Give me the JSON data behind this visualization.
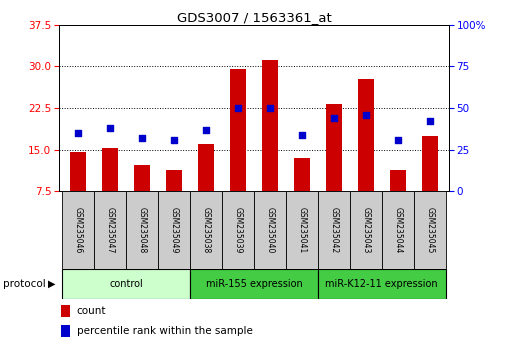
{
  "title": "GDS3007 / 1563361_at",
  "samples": [
    "GSM235046",
    "GSM235047",
    "GSM235048",
    "GSM235049",
    "GSM235038",
    "GSM235039",
    "GSM235040",
    "GSM235041",
    "GSM235042",
    "GSM235043",
    "GSM235044",
    "GSM235045"
  ],
  "count_values": [
    14.5,
    15.2,
    12.3,
    11.3,
    16.0,
    29.5,
    31.2,
    13.5,
    23.2,
    27.8,
    11.3,
    17.5
  ],
  "percentile_values": [
    35,
    38,
    32,
    31,
    37,
    50,
    50,
    34,
    44,
    46,
    31,
    42
  ],
  "ylim_left": [
    7.5,
    37.5
  ],
  "ylim_right": [
    0,
    100
  ],
  "yticks_left": [
    7.5,
    15.0,
    22.5,
    30.0,
    37.5
  ],
  "yticks_right": [
    0,
    25,
    50,
    75,
    100
  ],
  "bar_color": "#cc0000",
  "dot_color": "#0000cc",
  "group_configs": [
    {
      "indices": [
        0,
        1,
        2,
        3
      ],
      "label": "control",
      "color": "#ccffcc"
    },
    {
      "indices": [
        4,
        5,
        6,
        7
      ],
      "label": "miR-155 expression",
      "color": "#44cc44"
    },
    {
      "indices": [
        8,
        9,
        10,
        11
      ],
      "label": "miR-K12-11 expression",
      "color": "#44cc44"
    }
  ],
  "protocol_label": "protocol",
  "legend_count_label": "count",
  "legend_percentile_label": "percentile rank within the sample",
  "sample_box_color": "#cccccc"
}
